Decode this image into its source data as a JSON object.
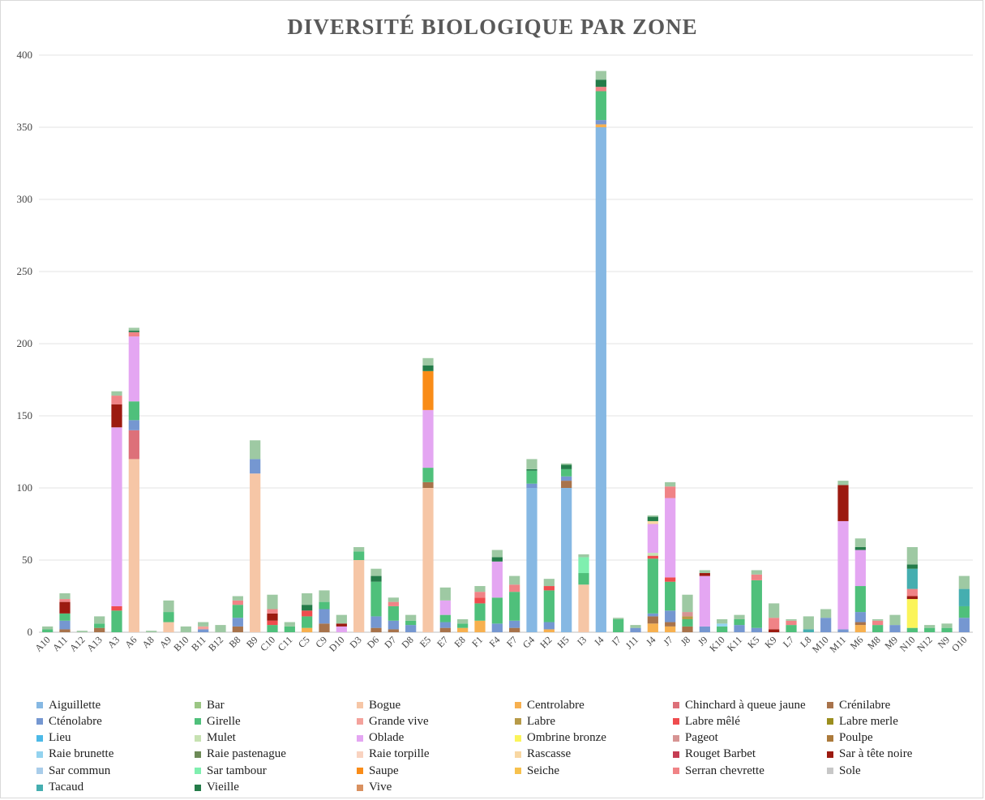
{
  "chart_data": {
    "type": "bar",
    "stacked": true,
    "title": "DIVERSITÉ BIOLOGIQUE PAR ZONE",
    "ylim": [
      0,
      400
    ],
    "yticks": [
      0,
      50,
      100,
      150,
      200,
      250,
      300,
      350,
      400
    ],
    "grid": true,
    "legend_position": "bottom",
    "categories": [
      "A10",
      "A11",
      "A12",
      "A13",
      "A3",
      "A6",
      "A8",
      "A9",
      "B10",
      "B11",
      "B12",
      "B8",
      "B9",
      "C10",
      "C11",
      "C5",
      "C9",
      "D10",
      "D3",
      "D6",
      "D7",
      "D8",
      "E5",
      "E7",
      "E8",
      "F1",
      "F4",
      "F7",
      "G4",
      "H2",
      "H5",
      "I3",
      "I4",
      "I7",
      "J11",
      "J4",
      "J7",
      "J8",
      "J9",
      "K10",
      "K11",
      "K5",
      "K9",
      "L7",
      "L8",
      "M10",
      "M11",
      "M6",
      "M8",
      "M9",
      "N10",
      "N12",
      "N9",
      "O10"
    ],
    "series": [
      {
        "name": "Aiguillette",
        "color": "#86b8e3",
        "values": {
          "G4": 100,
          "H5": 100,
          "I4": 350
        }
      },
      {
        "name": "Bar",
        "color": "#9bc684",
        "values": {}
      },
      {
        "name": "Bogue",
        "color": "#f6c6a6",
        "values": {
          "A6": 120,
          "A9": 7,
          "B9": 110,
          "D3": 50,
          "E5": 100,
          "I3": 33
        }
      },
      {
        "name": "Centrolabre",
        "color": "#f7b04f",
        "values": {
          "C5": 3,
          "E8": 3,
          "F1": 8,
          "H2": 2,
          "I4": 2,
          "J4": 6,
          "J7": 4,
          "M6": 5
        }
      },
      {
        "name": "Chinchard à queue jaune",
        "color": "#dd7079",
        "values": {
          "A6": 20
        }
      },
      {
        "name": "Crénilabre",
        "color": "#a8734b",
        "values": {
          "A11": 2,
          "A13": 3,
          "B8": 4,
          "C9": 6,
          "D6": 3,
          "D7": 2,
          "E5": 4,
          "E7": 3,
          "F7": 3,
          "H5": 5,
          "J4": 5,
          "J7": 3,
          "J8": 4,
          "M6": 2
        }
      },
      {
        "name": "Cténolabre",
        "color": "#7597d1",
        "values": {
          "A11": 6,
          "A6": 7,
          "B8": 6,
          "B9": 10,
          "B11": 2,
          "C9": 10,
          "D6": 8,
          "D7": 6,
          "D8": 5,
          "E7": 4,
          "F4": 6,
          "F7": 5,
          "G4": 3,
          "H2": 5,
          "H5": 3,
          "I4": 3,
          "J11": 3,
          "J4": 2,
          "J7": 8,
          "J9": 4,
          "K11": 5,
          "K5": 3,
          "M10": 10,
          "M11": 2,
          "M6": 7,
          "M9": 5,
          "O10": 10
        }
      },
      {
        "name": "Girelle",
        "color": "#4fc07b",
        "values": {
          "A10": 2,
          "A11": 5,
          "A13": 3,
          "A3": 15,
          "A6": 13,
          "A9": 7,
          "B8": 9,
          "C10": 5,
          "C11": 4,
          "C5": 8,
          "C9": 5,
          "D3": 6,
          "D6": 24,
          "D7": 10,
          "D8": 3,
          "E5": 10,
          "E7": 5,
          "E8": 3,
          "F1": 12,
          "F4": 18,
          "F7": 20,
          "G4": 9,
          "H2": 22,
          "H5": 5,
          "I3": 8,
          "I4": 20,
          "I7": 9,
          "K11": 4,
          "K5": 33,
          "L7": 5,
          "M6": 18,
          "M8": 5,
          "N12": 3,
          "N9": 3,
          "O10": 8,
          "J4": 38,
          "J7": 20,
          "J8": 5,
          "K10": 4,
          "N10": 3
        }
      },
      {
        "name": "Grande vive",
        "color": "#f4a29c",
        "values": {
          "B11": 2
        }
      },
      {
        "name": "Labre",
        "color": "#b79a48",
        "values": {
          "J8": 2
        }
      },
      {
        "name": "Labre mêlé",
        "color": "#ef4c4e",
        "values": {
          "A3": 3,
          "C5": 4,
          "C10": 3,
          "F1": 4,
          "H2": 3,
          "J4": 2,
          "J7": 3
        }
      },
      {
        "name": "Labre merle",
        "color": "#9b8e1e",
        "values": {}
      },
      {
        "name": "Lieu",
        "color": "#4cb9e7",
        "values": {}
      },
      {
        "name": "Mulet",
        "color": "#c7e2b2",
        "values": {
          "J4": 2
        }
      },
      {
        "name": "Oblade",
        "color": "#e4a6f2",
        "values": {
          "A3": 124,
          "A6": 45,
          "E5": 40,
          "E7": 10,
          "F4": 25,
          "J4": 20,
          "J7": 55,
          "J9": 35,
          "M11": 75,
          "M6": 25,
          "D10": 4
        }
      },
      {
        "name": "Ombrine bronze",
        "color": "#fbf45a",
        "values": {
          "N10": 20
        }
      },
      {
        "name": "Pageot",
        "color": "#d79493",
        "values": {
          "J8": 3
        }
      },
      {
        "name": "Poulpe",
        "color": "#ac7a3b",
        "values": {}
      },
      {
        "name": "Raie brunette",
        "color": "#93d3ef",
        "values": {
          "K10": 2
        }
      },
      {
        "name": "Raie pastenague",
        "color": "#6d8a57",
        "values": {}
      },
      {
        "name": "Raie torpille",
        "color": "#f9d3c0",
        "values": {}
      },
      {
        "name": "Rascasse",
        "color": "#f8d7a2",
        "values": {
          "J4": 2
        }
      },
      {
        "name": "Rouget Barbet",
        "color": "#c53d52",
        "values": {}
      },
      {
        "name": "Sar à tête noire",
        "color": "#9c1a10",
        "values": {
          "A11": 8,
          "A3": 16,
          "C10": 5,
          "D10": 2,
          "J9": 2,
          "K9": 2,
          "M11": 25,
          "N10": 2
        }
      },
      {
        "name": "Sar commun",
        "color": "#a9cdea",
        "values": {}
      },
      {
        "name": "Sar tambour",
        "color": "#7fefaf",
        "values": {
          "I3": 11
        }
      },
      {
        "name": "Saupe",
        "color": "#f98c18",
        "values": {
          "E5": 27
        }
      },
      {
        "name": "Seiche",
        "color": "#f7c14d",
        "values": {}
      },
      {
        "name": "Serran chevrette",
        "color": "#f08386",
        "values": {
          "A11": 2,
          "A3": 6,
          "A6": 3,
          "B8": 3,
          "C10": 3,
          "D7": 3,
          "F1": 4,
          "F7": 5,
          "J7": 8,
          "K5": 4,
          "K9": 8,
          "L7": 3,
          "M8": 3,
          "N10": 5,
          "I4": 3
        }
      },
      {
        "name": "Sole",
        "color": "#c7c7c7",
        "values": {}
      },
      {
        "name": "Tacaud",
        "color": "#45aeb0",
        "values": {
          "N10": 14,
          "O10": 12,
          "L8": 2
        }
      },
      {
        "name": "Vieille",
        "color": "#247c49",
        "values": {
          "A6": 1,
          "C5": 4,
          "D6": 4,
          "E5": 4,
          "F4": 3,
          "G4": 1,
          "H5": 3,
          "I4": 5,
          "J4": 3,
          "N10": 3,
          "M6": 2
        }
      },
      {
        "name": "Vive",
        "color": "#d99160",
        "values": {}
      }
    ],
    "totals": {
      "A10": 4,
      "A11": 27,
      "A12": 1,
      "A13": 11,
      "A3": 167,
      "A6": 211,
      "A8": 1,
      "A9": 22,
      "B10": 4,
      "B11": 7,
      "B12": 5,
      "B8": 25,
      "B9": 133,
      "C10": 26,
      "C11": 7,
      "C5": 27,
      "C9": 29,
      "D10": 12,
      "D3": 59,
      "D6": 44,
      "D7": 24,
      "D8": 12,
      "E5": 190,
      "E7": 31,
      "E8": 9,
      "F1": 32,
      "F4": 57,
      "F7": 39,
      "G4": 120,
      "H2": 37,
      "H5": 117,
      "I3": 54,
      "I4": 389,
      "I7": 10,
      "J11": 5,
      "J4": 81,
      "J7": 104,
      "J8": 26,
      "J9": 43,
      "K10": 9,
      "K11": 12,
      "K5": 43,
      "K9": 20,
      "L7": 9,
      "L8": 11,
      "M10": 16,
      "M11": 105,
      "M6": 65,
      "M8": 9,
      "M9": 12,
      "N10": 59,
      "N12": 5,
      "N9": 6,
      "O10": 39
    }
  }
}
